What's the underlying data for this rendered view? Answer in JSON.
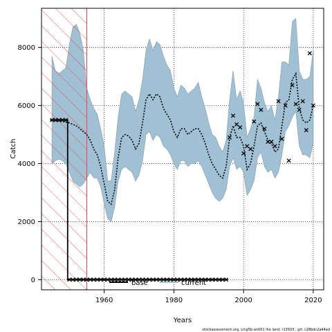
{
  "chart_data": {
    "type": "line",
    "xlabel": "Years",
    "ylabel": "Catch",
    "xlim": [
      1942,
      2023
    ],
    "ylim": [
      -350,
      9350
    ],
    "x_ticks": [
      1960,
      1980,
      2000,
      2020
    ],
    "y_ticks": [
      0,
      2000,
      4000,
      6000,
      8000
    ],
    "grid": true,
    "grid_style": "dotted",
    "legend_position": "bottom-center",
    "hatched_region": {
      "x_start": 1942,
      "x_end": 1955,
      "color": "#e8444a"
    },
    "series": [
      {
        "name": "base",
        "style": "step",
        "color": "#000000",
        "x": [
          1945,
          1946,
          1947,
          1948,
          1949,
          1950,
          1951,
          1952,
          1953,
          1954,
          1955,
          1956,
          1957,
          1958,
          1959,
          1960,
          1961,
          1962,
          1963,
          1964,
          1965,
          1966,
          1967,
          1968,
          1969,
          1970,
          1971,
          1972,
          1973,
          1974,
          1975,
          1976,
          1977,
          1978,
          1979,
          1980,
          1981,
          1982,
          1983,
          1984,
          1985,
          1986,
          1987,
          1988,
          1989,
          1990,
          1991,
          1992,
          1993,
          1994,
          1995
        ],
        "y": [
          5500,
          5500,
          5500,
          5500,
          5500,
          0,
          0,
          0,
          0,
          0,
          0,
          0,
          0,
          0,
          0,
          0,
          0,
          0,
          0,
          0,
          0,
          0,
          0,
          0,
          0,
          0,
          0,
          0,
          0,
          0,
          0,
          0,
          0,
          0,
          0,
          0,
          0,
          0,
          0,
          0,
          0,
          0,
          0,
          0,
          0,
          0,
          0,
          0,
          0,
          0,
          0
        ]
      },
      {
        "name": "current",
        "style": "dotted",
        "color": "#000000",
        "band_color": "#9fc1d3",
        "x": [
          1945,
          1946,
          1947,
          1948,
          1949,
          1950,
          1951,
          1952,
          1953,
          1954,
          1955,
          1956,
          1957,
          1958,
          1959,
          1960,
          1961,
          1962,
          1963,
          1964,
          1965,
          1966,
          1967,
          1968,
          1969,
          1970,
          1971,
          1972,
          1973,
          1974,
          1975,
          1976,
          1977,
          1978,
          1979,
          1980,
          1981,
          1982,
          1983,
          1984,
          1985,
          1986,
          1987,
          1988,
          1989,
          1990,
          1991,
          1992,
          1993,
          1994,
          1995,
          1996,
          1997,
          1998,
          1999,
          2000,
          2001,
          2002,
          2003,
          2004,
          2005,
          2006,
          2007,
          2008,
          2009,
          2010,
          2011,
          2012,
          2013,
          2014,
          2015,
          2016,
          2017,
          2018,
          2019,
          2020
        ],
        "y": [
          5500,
          5480,
          5460,
          5450,
          5430,
          5400,
          5350,
          5300,
          5200,
          5100,
          5000,
          4800,
          4500,
          4300,
          3900,
          3300,
          2700,
          2600,
          3100,
          4200,
          4900,
          5000,
          4950,
          4800,
          4500,
          4700,
          5400,
          6200,
          6400,
          6200,
          6400,
          6300,
          5900,
          5700,
          5500,
          5100,
          4900,
          5200,
          5200,
          5000,
          5100,
          5200,
          5200,
          5000,
          4700,
          4300,
          4000,
          3800,
          3600,
          3500,
          3900,
          4900,
          5300,
          4900,
          4900,
          4600,
          3800,
          4000,
          4600,
          5300,
          5400,
          5100,
          4800,
          4700,
          4400,
          4500,
          5300,
          6100,
          6200,
          6900,
          7100,
          5900,
          5500,
          5400,
          5500,
          6000
        ],
        "lower": [
          4000,
          4100,
          4150,
          4100,
          4000,
          3700,
          3400,
          3300,
          3200,
          3300,
          3500,
          3700,
          3500,
          3500,
          3200,
          2600,
          2100,
          2000,
          2500,
          3400,
          3800,
          3900,
          3800,
          3700,
          3400,
          3600,
          4100,
          5000,
          5100,
          4800,
          5000,
          4900,
          4600,
          4500,
          4300,
          4000,
          3800,
          4100,
          4100,
          3900,
          4000,
          4000,
          4100,
          3900,
          3600,
          3300,
          3000,
          2800,
          2700,
          2800,
          3100,
          3900,
          4200,
          3800,
          3900,
          3700,
          2900,
          3100,
          3400,
          4200,
          4400,
          3900,
          3700,
          3800,
          3500,
          3700,
          4300,
          5100,
          5300,
          5600,
          5800,
          4600,
          4300,
          4300,
          4200,
          4700
        ],
        "upper": [
          7700,
          7200,
          7100,
          7200,
          7300,
          8100,
          8700,
          8800,
          8500,
          7900,
          6600,
          6200,
          5900,
          5700,
          5200,
          4600,
          3400,
          3400,
          4400,
          5600,
          6400,
          6500,
          6400,
          6300,
          5800,
          6200,
          6900,
          7900,
          8300,
          7900,
          8200,
          8100,
          7700,
          7400,
          7200,
          6600,
          6300,
          6700,
          6600,
          6400,
          6500,
          6600,
          6800,
          6300,
          5900,
          5400,
          5000,
          4900,
          4600,
          4400,
          4800,
          6200,
          7200,
          6200,
          6500,
          6100,
          4900,
          5200,
          5600,
          6900,
          6600,
          6100,
          5800,
          6000,
          5500,
          6300,
          7500,
          7500,
          7400,
          8900,
          9000,
          7200,
          6900,
          6900,
          7000,
          7900
        ]
      }
    ],
    "observed": {
      "marker": "x",
      "x": [
        1996,
        1997,
        1998,
        1999,
        2000,
        2001,
        2002,
        2003,
        2004,
        2005,
        2006,
        2007,
        2008,
        2009,
        2010,
        2011,
        2012,
        2013,
        2014,
        2015,
        2016,
        2017,
        2018,
        2019,
        2020
      ],
      "y": [
        4900,
        5650,
        5350,
        5250,
        4350,
        4600,
        4500,
        5450,
        6050,
        5850,
        5200,
        4750,
        4750,
        4600,
        6150,
        4850,
        6000,
        4100,
        6700,
        6050,
        5850,
        6150,
        5150,
        7800,
        6000
      ]
    }
  },
  "footer": "stockassessment.org,  Ling5b-an001  lho  land,  r13503 ,  git:  c28bdc2a44ad"
}
